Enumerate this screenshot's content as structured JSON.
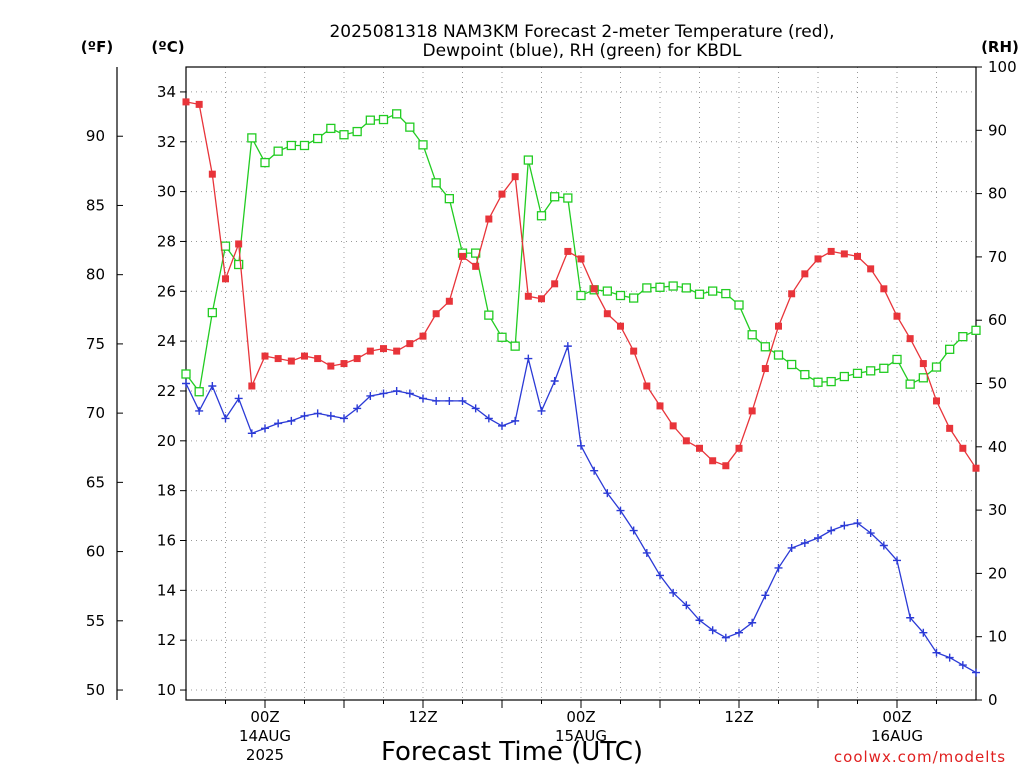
{
  "title_line1": "2025081318 NAM3KM Forecast 2-meter Temperature (red),",
  "title_line2": "Dewpoint (blue), RH (green) for KBDL",
  "unit_f": "(ºF)",
  "unit_c": "(ºC)",
  "unit_rh": "(RH)",
  "xlabel": "Forecast Time (UTC)",
  "credit": "coolwx.com/modelts",
  "colors": {
    "temperature": "#e8343a",
    "dewpoint": "#2b3ad6",
    "rh": "#22cc22"
  },
  "chart_data": {
    "type": "line",
    "x_axis": {
      "unit": "hours since 2025-08-13 18Z",
      "range": [
        0,
        60
      ],
      "ticks": [
        {
          "hour": 6,
          "label": "00Z",
          "sub1": "14AUG",
          "sub2": "2025"
        },
        {
          "hour": 18,
          "label": "12Z",
          "sub1": "",
          "sub2": ""
        },
        {
          "hour": 30,
          "label": "00Z",
          "sub1": "15AUG",
          "sub2": ""
        },
        {
          "hour": 42,
          "label": "12Z",
          "sub1": "",
          "sub2": ""
        },
        {
          "hour": 54,
          "label": "00Z",
          "sub1": "16AUG",
          "sub2": ""
        }
      ]
    },
    "y_left_c": {
      "range": [
        9.6,
        35
      ],
      "ticks": [
        10,
        12,
        14,
        16,
        18,
        20,
        22,
        24,
        26,
        28,
        30,
        32,
        34
      ]
    },
    "y_left_f": {
      "ticks": [
        50,
        55,
        60,
        65,
        70,
        75,
        80,
        85,
        90
      ]
    },
    "y_right_rh": {
      "range": [
        0,
        100
      ],
      "ticks": [
        0,
        10,
        20,
        30,
        40,
        50,
        60,
        70,
        80,
        90,
        100
      ]
    },
    "grid": true,
    "series": [
      {
        "name": "Temperature",
        "axis": "c",
        "marker": "filled-square",
        "x": [
          0,
          1,
          2,
          3,
          4,
          5,
          6,
          7,
          8,
          9,
          10,
          11,
          12,
          13,
          14,
          15,
          16,
          17,
          18,
          19,
          20,
          21,
          22,
          23,
          24,
          25,
          26,
          27,
          28,
          29,
          30,
          31,
          32,
          33,
          34,
          35,
          36,
          37,
          38,
          39,
          40,
          41,
          42,
          43,
          44,
          45,
          46,
          47,
          48,
          49,
          50,
          51,
          52,
          53,
          54,
          55,
          56,
          57,
          58,
          59,
          60
        ],
        "values": [
          33.6,
          33.5,
          30.7,
          26.5,
          27.9,
          22.2,
          23.4,
          23.3,
          23.2,
          23.4,
          23.3,
          23.0,
          23.1,
          23.3,
          23.6,
          23.7,
          23.6,
          23.9,
          24.2,
          25.1,
          25.6,
          27.4,
          27.0,
          28.9,
          29.9,
          30.6,
          25.8,
          25.7,
          26.3,
          27.6,
          27.3,
          26.1,
          25.1,
          24.6,
          23.6,
          22.2,
          21.4,
          20.6,
          20.0,
          19.7,
          19.2,
          19.0,
          19.7,
          21.2,
          22.9,
          24.6,
          25.9,
          26.7,
          27.3,
          27.6,
          27.5,
          27.4,
          26.9,
          26.1,
          25.0,
          24.1,
          23.1,
          21.6,
          20.5,
          19.7,
          18.9
        ]
      },
      {
        "name": "Dewpoint",
        "axis": "c",
        "marker": "plus",
        "x": [
          0,
          1,
          2,
          3,
          4,
          5,
          6,
          7,
          8,
          9,
          10,
          11,
          12,
          13,
          14,
          15,
          16,
          17,
          18,
          19,
          20,
          21,
          22,
          23,
          24,
          25,
          26,
          27,
          28,
          29,
          30,
          31,
          32,
          33,
          34,
          35,
          36,
          37,
          38,
          39,
          40,
          41,
          42,
          43,
          44,
          45,
          46,
          47,
          48,
          49,
          50,
          51,
          52,
          53,
          54,
          55,
          56,
          57,
          58,
          59,
          60
        ],
        "values": [
          22.3,
          21.2,
          22.2,
          20.9,
          21.7,
          20.3,
          20.5,
          20.7,
          20.8,
          21.0,
          21.1,
          21.0,
          20.9,
          21.3,
          21.8,
          21.9,
          22.0,
          21.9,
          21.7,
          21.6,
          21.6,
          21.6,
          21.3,
          20.9,
          20.6,
          20.8,
          23.3,
          21.2,
          22.4,
          23.8,
          19.8,
          18.8,
          17.9,
          17.2,
          16.4,
          15.5,
          14.6,
          13.9,
          13.4,
          12.8,
          12.4,
          12.1,
          12.3,
          12.7,
          13.8,
          14.9,
          15.7,
          15.9,
          16.1,
          16.4,
          16.6,
          16.7,
          16.3,
          15.8,
          15.2,
          12.9,
          12.3,
          11.5,
          11.3,
          11.0,
          10.7
        ]
      },
      {
        "name": "RH",
        "axis": "rh",
        "marker": "open-square",
        "x": [
          0,
          1,
          2,
          3,
          4,
          5,
          6,
          7,
          8,
          9,
          10,
          11,
          12,
          13,
          14,
          15,
          16,
          17,
          18,
          19,
          20,
          21,
          22,
          23,
          24,
          25,
          26,
          27,
          28,
          29,
          30,
          31,
          32,
          33,
          34,
          35,
          36,
          37,
          38,
          39,
          40,
          41,
          42,
          43,
          44,
          45,
          46,
          47,
          48,
          49,
          50,
          51,
          52,
          53,
          54,
          55,
          56,
          57,
          58,
          59,
          60
        ],
        "values": [
          51.5,
          48.7,
          61.2,
          71.7,
          68.8,
          88.8,
          84.9,
          86.7,
          87.6,
          87.6,
          88.7,
          90.3,
          89.3,
          89.8,
          91.6,
          91.7,
          92.6,
          90.5,
          87.7,
          81.7,
          79.2,
          70.6,
          70.6,
          60.8,
          57.3,
          55.9,
          85.3,
          76.5,
          79.5,
          79.3,
          63.9,
          64.8,
          64.6,
          63.9,
          63.5,
          65.1,
          65.2,
          65.4,
          65.1,
          64.1,
          64.6,
          64.2,
          62.4,
          57.7,
          55.8,
          54.5,
          53.0,
          51.4,
          50.2,
          50.3,
          51.1,
          51.6,
          52.0,
          52.4,
          53.8,
          49.9,
          50.9,
          52.6,
          55.4,
          57.4,
          58.4
        ]
      }
    ]
  }
}
